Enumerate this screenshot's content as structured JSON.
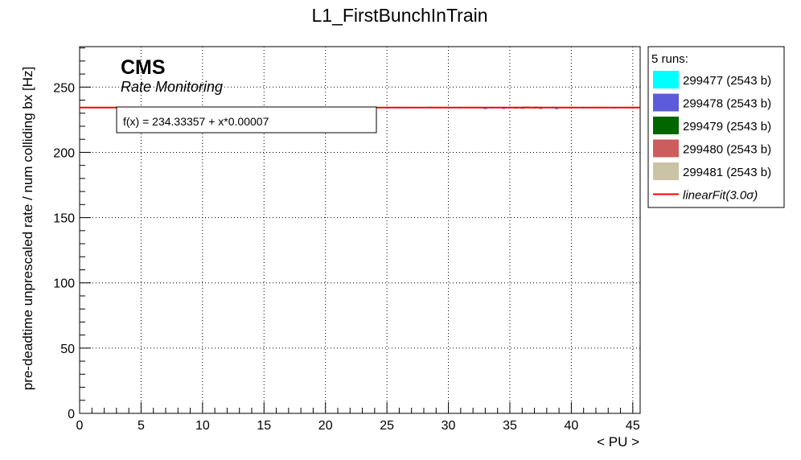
{
  "chart_data": {
    "type": "scatter",
    "title": "L1_FirstBunchInTrain",
    "xlabel": "< PU >",
    "ylabel": "pre-deadtime unprescaled rate / num colliding bx [Hz]",
    "xlim": [
      0,
      45.6
    ],
    "ylim": [
      0,
      281
    ],
    "xticks": [
      0,
      5,
      10,
      15,
      20,
      25,
      30,
      35,
      40,
      45
    ],
    "yticks": [
      0,
      50,
      100,
      150,
      200,
      250
    ],
    "grid": true,
    "legend_position": "right",
    "legend_header": "5 runs:",
    "branding": {
      "experiment": "CMS",
      "subtitle": "Rate Monitoring"
    },
    "fit": {
      "name": "linearFit(3.0σ)",
      "label_text": "f(x) = 234.33357 + x*0.00007",
      "intercept": 234.33357,
      "slope": 7e-05,
      "x_range": [
        0,
        45.6
      ],
      "color": "#ff0000"
    },
    "series": [
      {
        "name": "299477 (2543 b)",
        "color": "#00ffff",
        "x": [
          26.0,
          28.5,
          31.0,
          33.5,
          36.0,
          38.5,
          41.0,
          43.5
        ],
        "y": [
          234.3,
          234.4,
          234.3,
          234.2,
          234.3,
          234.4,
          234.3,
          234.2
        ]
      },
      {
        "name": "299478 (2543 b)",
        "color": "#5c5cdb",
        "x": [
          33.0,
          34.5,
          36.0,
          37.5,
          38.8
        ],
        "y": [
          233.8,
          233.9,
          234.0,
          233.9,
          233.8
        ]
      },
      {
        "name": "299479 (2543 b)",
        "color": "#006600",
        "x": [
          35.5,
          36.2,
          37.0
        ],
        "y": [
          234.2,
          234.4,
          234.3
        ]
      },
      {
        "name": "299480 (2543 b)",
        "color": "#cd5c5c",
        "x": [
          36.5,
          37.2
        ],
        "y": [
          234.5,
          234.4
        ]
      },
      {
        "name": "299481 (2543 b)",
        "color": "#cbc3a5",
        "x": [
          36.8,
          37.5
        ],
        "y": [
          234.3,
          234.4
        ]
      }
    ]
  }
}
